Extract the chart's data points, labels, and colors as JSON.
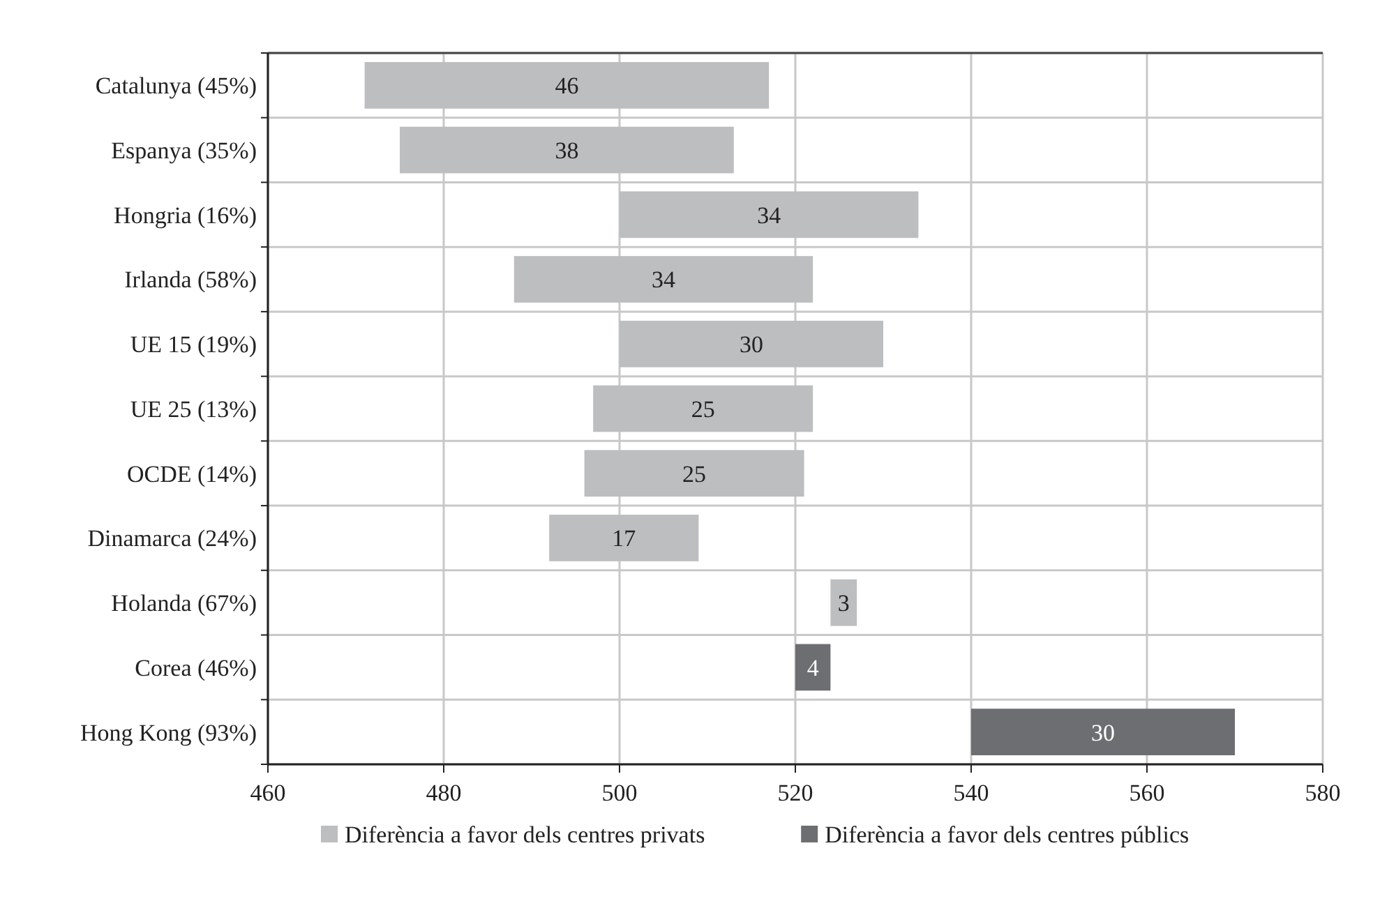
{
  "chart_data": {
    "type": "bar",
    "orientation": "horizontal",
    "categories": [
      "Catalunya (45%)",
      "Espanya (35%)",
      "Hongria (16%)",
      "Irlanda (58%)",
      "UE 15 (19%)",
      "UE 25 (13%)",
      "OCDE (14%)",
      "Dinamarca (24%)",
      "Holanda (67%)",
      "Corea (46%)",
      "Hong Kong (93%)"
    ],
    "series": [
      {
        "name": "Diferència a favor dels centres privats",
        "color": "#bdbec0",
        "values": [
          46,
          38,
          34,
          34,
          30,
          25,
          25,
          17,
          3,
          null,
          null
        ],
        "base": [
          471,
          475,
          500,
          488,
          500,
          497,
          496,
          492,
          524,
          null,
          null
        ]
      },
      {
        "name": "Diferència a favor dels centres públics",
        "color": "#6d6e71",
        "values": [
          null,
          null,
          null,
          null,
          null,
          null,
          null,
          null,
          null,
          4,
          30
        ],
        "base": [
          null,
          null,
          null,
          null,
          null,
          null,
          null,
          null,
          null,
          520,
          540
        ]
      }
    ],
    "xlim": [
      460,
      580
    ],
    "xticks": [
      460,
      480,
      500,
      520,
      540,
      560,
      580
    ],
    "grid": true,
    "legend": "bottom",
    "data_labels": true
  }
}
